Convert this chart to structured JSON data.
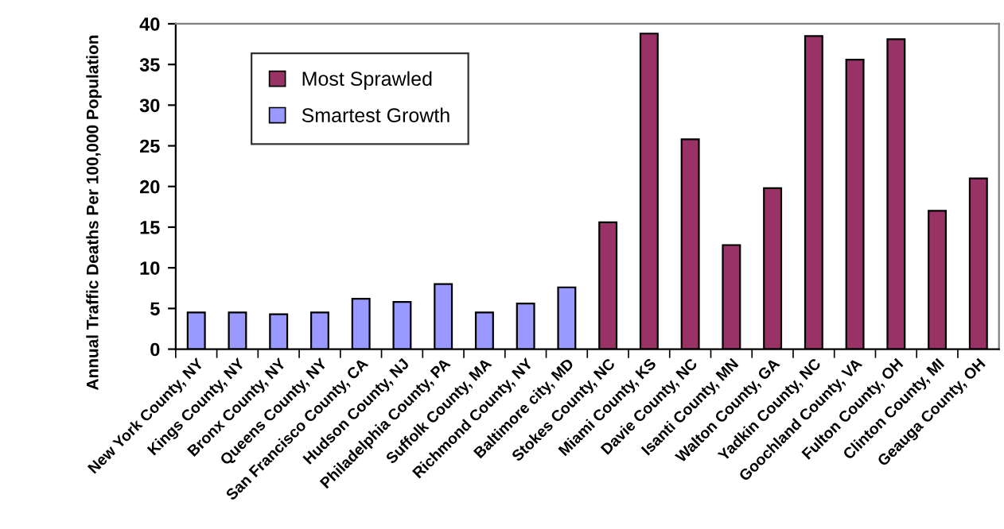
{
  "chart_data": {
    "type": "bar",
    "ylabel": "Annual Traffic Deaths Per 100,000 Population",
    "categories": [
      "New York County, NY",
      "Kings County, NY",
      "Bronx County, NY",
      "Queens County, NY",
      "San Francisco County, CA",
      "Hudson County, NJ",
      "Philadelphia County, PA",
      "Suffolk County, MA",
      "Richmond County, NY",
      "Baltimore city, MD",
      "Stokes County, NC",
      "Miami County, KS",
      "Davie County, NC",
      "Isanti County, MN",
      "Walton County, GA",
      "Yadkin County, NC",
      "Goochland County, VA",
      "Fulton County, OH",
      "Clinton County, MI",
      "Geauga County, OH"
    ],
    "series": [
      {
        "name": "Most Sprawled",
        "color": "#993366",
        "values": [
          null,
          null,
          null,
          null,
          null,
          null,
          null,
          null,
          null,
          null,
          15.6,
          38.8,
          25.8,
          12.8,
          19.8,
          38.5,
          35.6,
          38.1,
          17.0,
          21.0
        ]
      },
      {
        "name": "Smartest Growth",
        "color": "#9999ff",
        "values": [
          4.5,
          4.5,
          4.3,
          4.5,
          6.2,
          5.8,
          8.0,
          4.5,
          5.6,
          7.6,
          null,
          null,
          null,
          null,
          null,
          null,
          null,
          null,
          null,
          null
        ]
      }
    ],
    "ylim": [
      0,
      40
    ],
    "yticks": [
      0,
      5,
      10,
      15,
      20,
      25,
      30,
      35,
      40
    ],
    "grid": false,
    "legend": "top left"
  }
}
